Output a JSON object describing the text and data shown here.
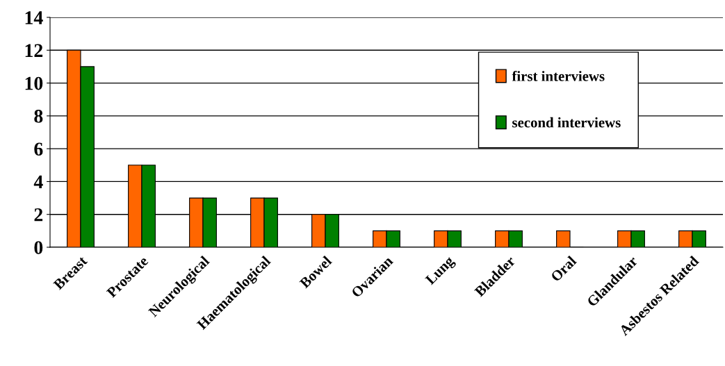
{
  "chart_data": {
    "type": "bar",
    "categories": [
      "Breast",
      "Prostate",
      "Neurological",
      "Haematological",
      "Bowel",
      "Ovarian",
      "Lung",
      "Bladder",
      "Oral",
      "Glandular",
      "Asbestos Related"
    ],
    "series": [
      {
        "name": "first interviews",
        "color": "#ff6600",
        "values": [
          12,
          5,
          3,
          3,
          2,
          1,
          1,
          1,
          1,
          1,
          1
        ]
      },
      {
        "name": "second interviews",
        "color": "#008000",
        "values": [
          11,
          5,
          3,
          3,
          2,
          1,
          1,
          1,
          0,
          1,
          1
        ]
      }
    ],
    "ylim": [
      0,
      14
    ],
    "yticks": [
      0,
      2,
      4,
      6,
      8,
      10,
      12,
      14
    ],
    "grid": "y",
    "legend": "top right"
  }
}
